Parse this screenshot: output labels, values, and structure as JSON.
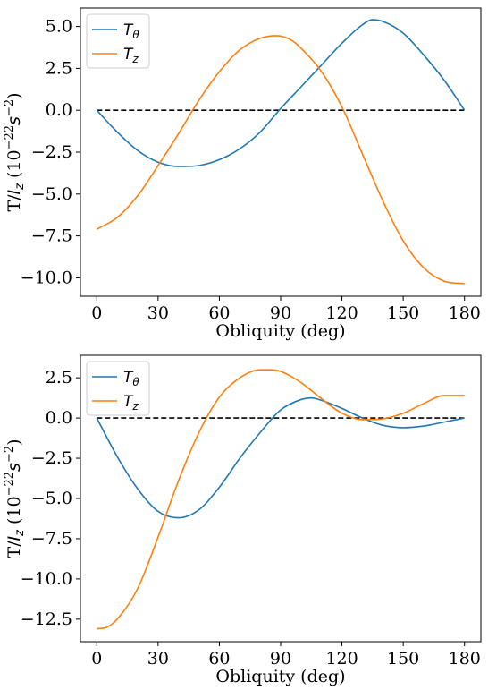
{
  "chart_data": [
    {
      "type": "line",
      "title": "",
      "xlabel": "Obliquity (deg)",
      "ylabel": {
        "main": "T/",
        "italic": "I",
        "sub": "z",
        "unit_open": " (10",
        "exp": "−22",
        "unit_mid": "s",
        "exp2": "−2",
        "unit_close": ")"
      },
      "xlim": [
        -8,
        188
      ],
      "ylim": [
        -11.1,
        6.1
      ],
      "xticks": [
        0,
        30,
        60,
        90,
        120,
        150,
        180
      ],
      "xtick_labels": [
        "0",
        "30",
        "60",
        "90",
        "120",
        "150",
        "180"
      ],
      "yticks": [
        5.0,
        2.5,
        0.0,
        -2.5,
        -5.0,
        -7.5,
        -10.0
      ],
      "ytick_labels": [
        "5.0",
        "2.5",
        "0.0",
        "−2.5",
        "−5.0",
        "−7.5",
        "−10.0"
      ],
      "legend_position": "top-left",
      "legend_entries": [
        {
          "var": "T",
          "sub": "θ",
          "color": "#1f77b4"
        },
        {
          "var": "T",
          "sub": "z",
          "color": "#ff7f0e"
        }
      ],
      "zero_line": {
        "y": 0,
        "color": "#000000",
        "style": "dashed"
      },
      "series": [
        {
          "color": "#1f77b4",
          "x": [
            0,
            10,
            20,
            30,
            40,
            50,
            60,
            70,
            80,
            90,
            100,
            110,
            120,
            130,
            135,
            140,
            150,
            160,
            170,
            180
          ],
          "y": [
            0.0,
            -1.3,
            -2.4,
            -3.1,
            -3.35,
            -3.3,
            -2.95,
            -2.3,
            -1.3,
            0.1,
            1.4,
            2.7,
            4.0,
            5.1,
            5.4,
            5.3,
            4.6,
            3.3,
            1.8,
            0.0
          ]
        },
        {
          "color": "#ff7f0e",
          "x": [
            0,
            10,
            20,
            30,
            40,
            50,
            60,
            70,
            80,
            88,
            95,
            100,
            110,
            120,
            130,
            140,
            150,
            160,
            170,
            180
          ],
          "y": [
            -7.1,
            -6.4,
            -5.1,
            -3.3,
            -1.4,
            0.6,
            2.3,
            3.6,
            4.3,
            4.45,
            4.2,
            3.7,
            2.3,
            0.2,
            -2.6,
            -5.4,
            -7.8,
            -9.4,
            -10.2,
            -10.35
          ]
        }
      ]
    },
    {
      "type": "line",
      "title": "",
      "xlabel": "Obliquity (deg)",
      "ylabel": {
        "main": "T/",
        "italic": "I",
        "sub": "z",
        "unit_open": " (10",
        "exp": "−22",
        "unit_mid": "s",
        "exp2": "−2",
        "unit_close": ")"
      },
      "xlim": [
        -8,
        188
      ],
      "ylim": [
        -13.9,
        3.9
      ],
      "xticks": [
        0,
        30,
        60,
        90,
        120,
        150,
        180
      ],
      "xtick_labels": [
        "0",
        "30",
        "60",
        "90",
        "120",
        "150",
        "180"
      ],
      "yticks": [
        2.5,
        0.0,
        -2.5,
        -5.0,
        -7.5,
        -10.0,
        -12.5
      ],
      "ytick_labels": [
        "2.5",
        "0.0",
        "−2.5",
        "−5.0",
        "−7.5",
        "−10.0",
        "−12.5"
      ],
      "legend_position": "top-left",
      "legend_entries": [
        {
          "var": "T",
          "sub": "θ",
          "color": "#1f77b4"
        },
        {
          "var": "T",
          "sub": "z",
          "color": "#ff7f0e"
        }
      ],
      "zero_line": {
        "y": 0,
        "color": "#000000",
        "style": "dashed"
      },
      "series": [
        {
          "color": "#1f77b4",
          "x": [
            0,
            10,
            20,
            30,
            40,
            50,
            60,
            70,
            80,
            90,
            100,
            105,
            110,
            120,
            130,
            140,
            150,
            160,
            170,
            180
          ],
          "y": [
            0.0,
            -2.4,
            -4.4,
            -5.8,
            -6.2,
            -5.7,
            -4.3,
            -2.5,
            -0.9,
            0.5,
            1.15,
            1.25,
            1.1,
            0.6,
            0.0,
            -0.45,
            -0.6,
            -0.5,
            -0.25,
            0.0
          ]
        },
        {
          "color": "#ff7f0e",
          "x": [
            0,
            5,
            10,
            20,
            30,
            40,
            50,
            60,
            70,
            80,
            85,
            90,
            100,
            110,
            120,
            130,
            140,
            150,
            160,
            170,
            180
          ],
          "y": [
            -13.1,
            -13.0,
            -12.5,
            -10.6,
            -7.4,
            -3.9,
            -0.9,
            1.3,
            2.5,
            3.0,
            3.0,
            2.9,
            2.2,
            1.2,
            0.3,
            -0.1,
            -0.05,
            0.3,
            0.9,
            1.4,
            1.4
          ]
        }
      ]
    }
  ]
}
